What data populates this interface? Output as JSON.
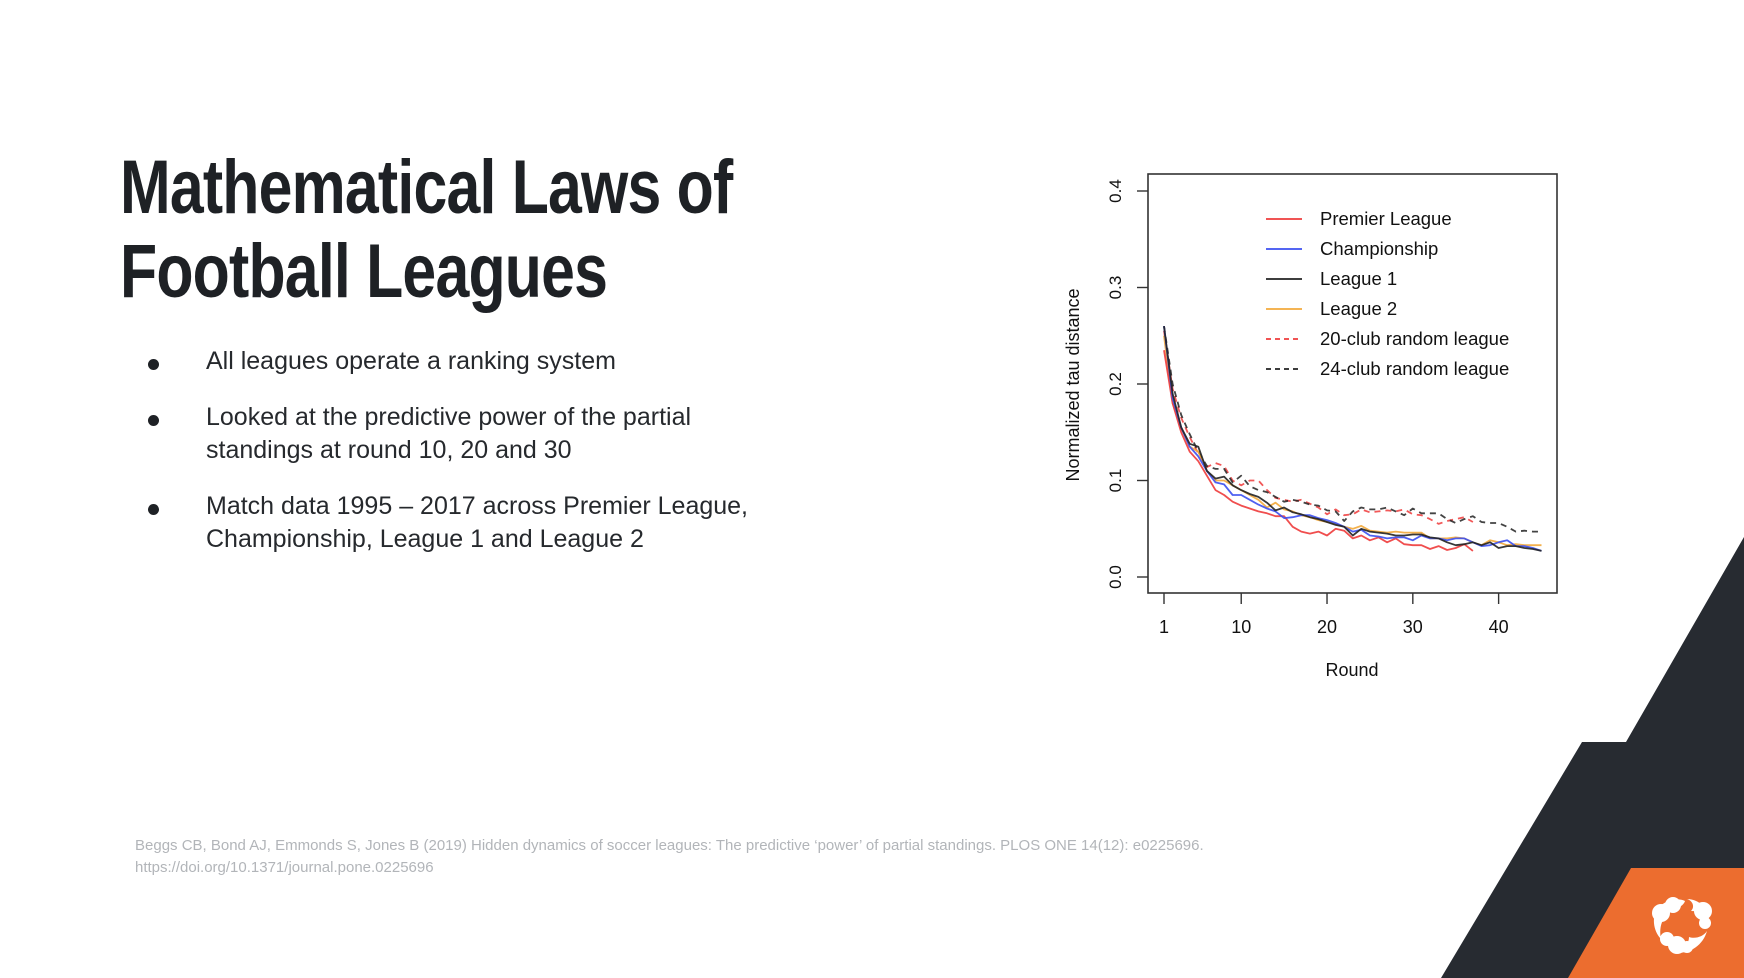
{
  "slide": {
    "title_lines": [
      "Mathematical Laws of",
      "Football Leagues"
    ],
    "bullets": [
      "All leagues operate a ranking system",
      "Looked at the predictive power of the partial standings at round 10, 20 and 30",
      "Match data 1995 – 2017 across Premier League, Championship, League 1 and League 2"
    ],
    "citation_lines": [
      "Beggs CB, Bond AJ, Emmonds S, Jones B (2019) Hidden dynamics of soccer leagues: The predictive ‘power’ of partial standings. PLOS ONE 14(12): e0225696.",
      "https://doi.org/10.1371/journal.pone.0225696"
    ],
    "logo_icon": "brand-swirl-logo-icon",
    "colors": {
      "title": "#1e2125",
      "dark_shape": "#272b31",
      "accent_orange": "#ec6d2f",
      "citation": "#b2b5b9"
    }
  },
  "chart_data": {
    "type": "line",
    "title": "",
    "xlabel": "Round",
    "ylabel": "Normalized tau distance",
    "xlim": [
      1,
      46
    ],
    "ylim": [
      0.0,
      0.4
    ],
    "xticks": [
      1,
      10,
      20,
      30,
      40
    ],
    "xtick_labels": [
      "1",
      "10",
      "20",
      "30",
      "40"
    ],
    "yticks": [
      0.0,
      0.1,
      0.2,
      0.3,
      0.4
    ],
    "ytick_labels": [
      "0.0",
      "0.1",
      "0.2",
      "0.3",
      "0.4"
    ],
    "grid": false,
    "legend_position": "top-right",
    "series": [
      {
        "name": "Premier League",
        "color": "#ee3b3b",
        "style": "solid",
        "x_start": 1,
        "values": [
          0.235,
          0.18,
          0.15,
          0.13,
          0.12,
          0.105,
          0.09,
          0.085,
          0.078,
          0.074,
          0.071,
          0.068,
          0.066,
          0.063,
          0.063,
          0.052,
          0.047,
          0.045,
          0.047,
          0.043,
          0.05,
          0.048,
          0.04,
          0.043,
          0.038,
          0.041,
          0.036,
          0.04,
          0.034,
          0.033,
          0.033,
          0.029,
          0.032,
          0.028,
          0.03,
          0.034,
          0.027
        ]
      },
      {
        "name": "Championship",
        "color": "#3b4ff0",
        "style": "solid",
        "x_start": 1,
        "values": [
          0.26,
          0.185,
          0.155,
          0.135,
          0.125,
          0.11,
          0.098,
          0.096,
          0.085,
          0.085,
          0.08,
          0.075,
          0.071,
          0.068,
          0.061,
          0.062,
          0.064,
          0.064,
          0.061,
          0.059,
          0.056,
          0.052,
          0.047,
          0.049,
          0.043,
          0.042,
          0.04,
          0.041,
          0.041,
          0.038,
          0.043,
          0.04,
          0.04,
          0.038,
          0.04,
          0.04,
          0.036,
          0.032,
          0.033,
          0.036,
          0.038,
          0.032,
          0.032,
          0.03,
          0.027
        ]
      },
      {
        "name": "League 1",
        "color": "#222222",
        "style": "solid",
        "x_start": 1,
        "values": [
          0.26,
          0.19,
          0.155,
          0.138,
          0.135,
          0.11,
          0.102,
          0.104,
          0.095,
          0.09,
          0.086,
          0.083,
          0.077,
          0.069,
          0.072,
          0.067,
          0.065,
          0.062,
          0.06,
          0.057,
          0.054,
          0.052,
          0.043,
          0.05,
          0.047,
          0.046,
          0.045,
          0.043,
          0.043,
          0.044,
          0.044,
          0.041,
          0.04,
          0.036,
          0.033,
          0.034,
          0.036,
          0.033,
          0.036,
          0.03,
          0.032,
          0.032,
          0.03,
          0.029,
          0.027
        ]
      },
      {
        "name": "League 2",
        "color": "#f2a93b",
        "style": "solid",
        "x_start": 1,
        "values": [
          0.25,
          0.18,
          0.155,
          0.135,
          0.13,
          0.11,
          0.1,
          0.1,
          0.095,
          0.09,
          0.085,
          0.08,
          0.072,
          0.077,
          0.07,
          0.068,
          0.064,
          0.062,
          0.059,
          0.057,
          0.055,
          0.052,
          0.05,
          0.053,
          0.048,
          0.047,
          0.046,
          0.047,
          0.046,
          0.046,
          0.046,
          0.04,
          0.04,
          0.04,
          0.041,
          0.04,
          0.036,
          0.033,
          0.038,
          0.036,
          0.033,
          0.034,
          0.033,
          0.033,
          0.033
        ]
      },
      {
        "name": "20-club random league",
        "color": "#ee3b3b",
        "style": "dashed",
        "x_start": 1,
        "values": [
          0.255,
          0.195,
          0.165,
          0.145,
          0.128,
          0.114,
          0.118,
          0.115,
          0.1,
          0.095,
          0.1,
          0.1,
          0.09,
          0.082,
          0.08,
          0.078,
          0.08,
          0.076,
          0.072,
          0.065,
          0.07,
          0.064,
          0.065,
          0.07,
          0.067,
          0.068,
          0.069,
          0.068,
          0.07,
          0.065,
          0.064,
          0.06,
          0.055,
          0.058,
          0.06,
          0.062,
          0.057
        ]
      },
      {
        "name": "24-club random league",
        "color": "#222222",
        "style": "dashed",
        "x_start": 1,
        "values": [
          0.26,
          0.2,
          0.168,
          0.148,
          0.13,
          0.115,
          0.112,
          0.112,
          0.098,
          0.105,
          0.094,
          0.09,
          0.088,
          0.083,
          0.078,
          0.08,
          0.078,
          0.075,
          0.074,
          0.069,
          0.068,
          0.058,
          0.068,
          0.072,
          0.07,
          0.07,
          0.072,
          0.068,
          0.064,
          0.071,
          0.066,
          0.066,
          0.066,
          0.06,
          0.056,
          0.06,
          0.063,
          0.057,
          0.056,
          0.056,
          0.052,
          0.047,
          0.048,
          0.047,
          0.047
        ]
      }
    ]
  }
}
